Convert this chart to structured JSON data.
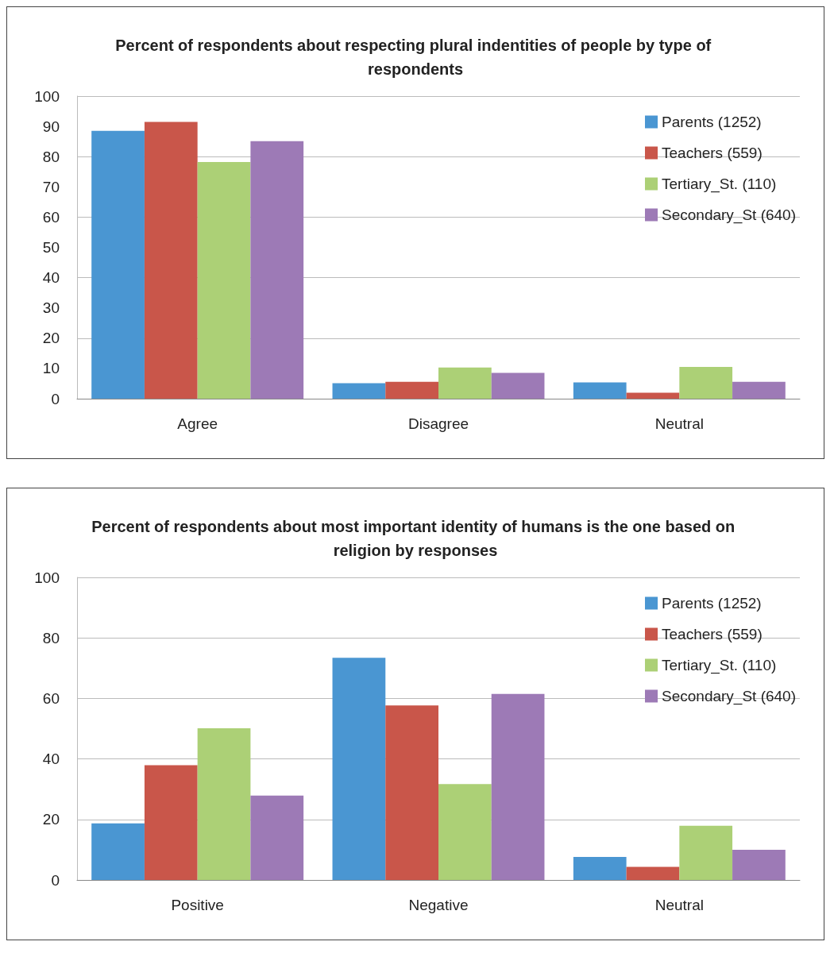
{
  "chart_data": [
    {
      "type": "bar",
      "title": "Percent of respondents about respecting plural indentities of people by type of respondents",
      "categories": [
        "Agree",
        "Disagree",
        "Neutral"
      ],
      "series": [
        {
          "name": "Parents (1252)",
          "color": "#4a96d2",
          "values": [
            88.5,
            5.1,
            5.4
          ]
        },
        {
          "name": "Teachers (559)",
          "color": "#c9564a",
          "values": [
            91.5,
            5.6,
            2
          ]
        },
        {
          "name": "Tertiary_St. (110)",
          "color": "#acd076",
          "values": [
            78.2,
            10.3,
            10.5
          ]
        },
        {
          "name": "Secondary_St (640)",
          "color": "#9d7ab6",
          "values": [
            85.1,
            8.5,
            5.6
          ]
        }
      ],
      "ylim": [
        0,
        100
      ],
      "yticks": [
        0,
        10,
        20,
        30,
        40,
        50,
        60,
        70,
        80,
        90,
        100
      ],
      "grid": "y",
      "legend": "top right"
    },
    {
      "type": "bar",
      "title": "Percent of respondents about most important identity of humans is the one based on religion by responses",
      "categories": [
        "Positive",
        "Negative",
        "Neutral"
      ],
      "series": [
        {
          "name": "Parents (1252)",
          "color": "#4a96d2",
          "values": [
            18.7,
            73.4,
            7.6
          ]
        },
        {
          "name": "Teachers (559)",
          "color": "#c9564a",
          "values": [
            37.9,
            57.7,
            4.3
          ]
        },
        {
          "name": "Tertiary_St. (110)",
          "color": "#acd076",
          "values": [
            50.1,
            31.7,
            17.9
          ]
        },
        {
          "name": "Secondary_St (640)",
          "color": "#9d7ab6",
          "values": [
            27.9,
            61.5,
            10
          ]
        }
      ],
      "ylim": [
        0,
        100
      ],
      "yticks": [
        0,
        20,
        40,
        60,
        80,
        100
      ],
      "grid": "y",
      "legend": "top right"
    }
  ]
}
